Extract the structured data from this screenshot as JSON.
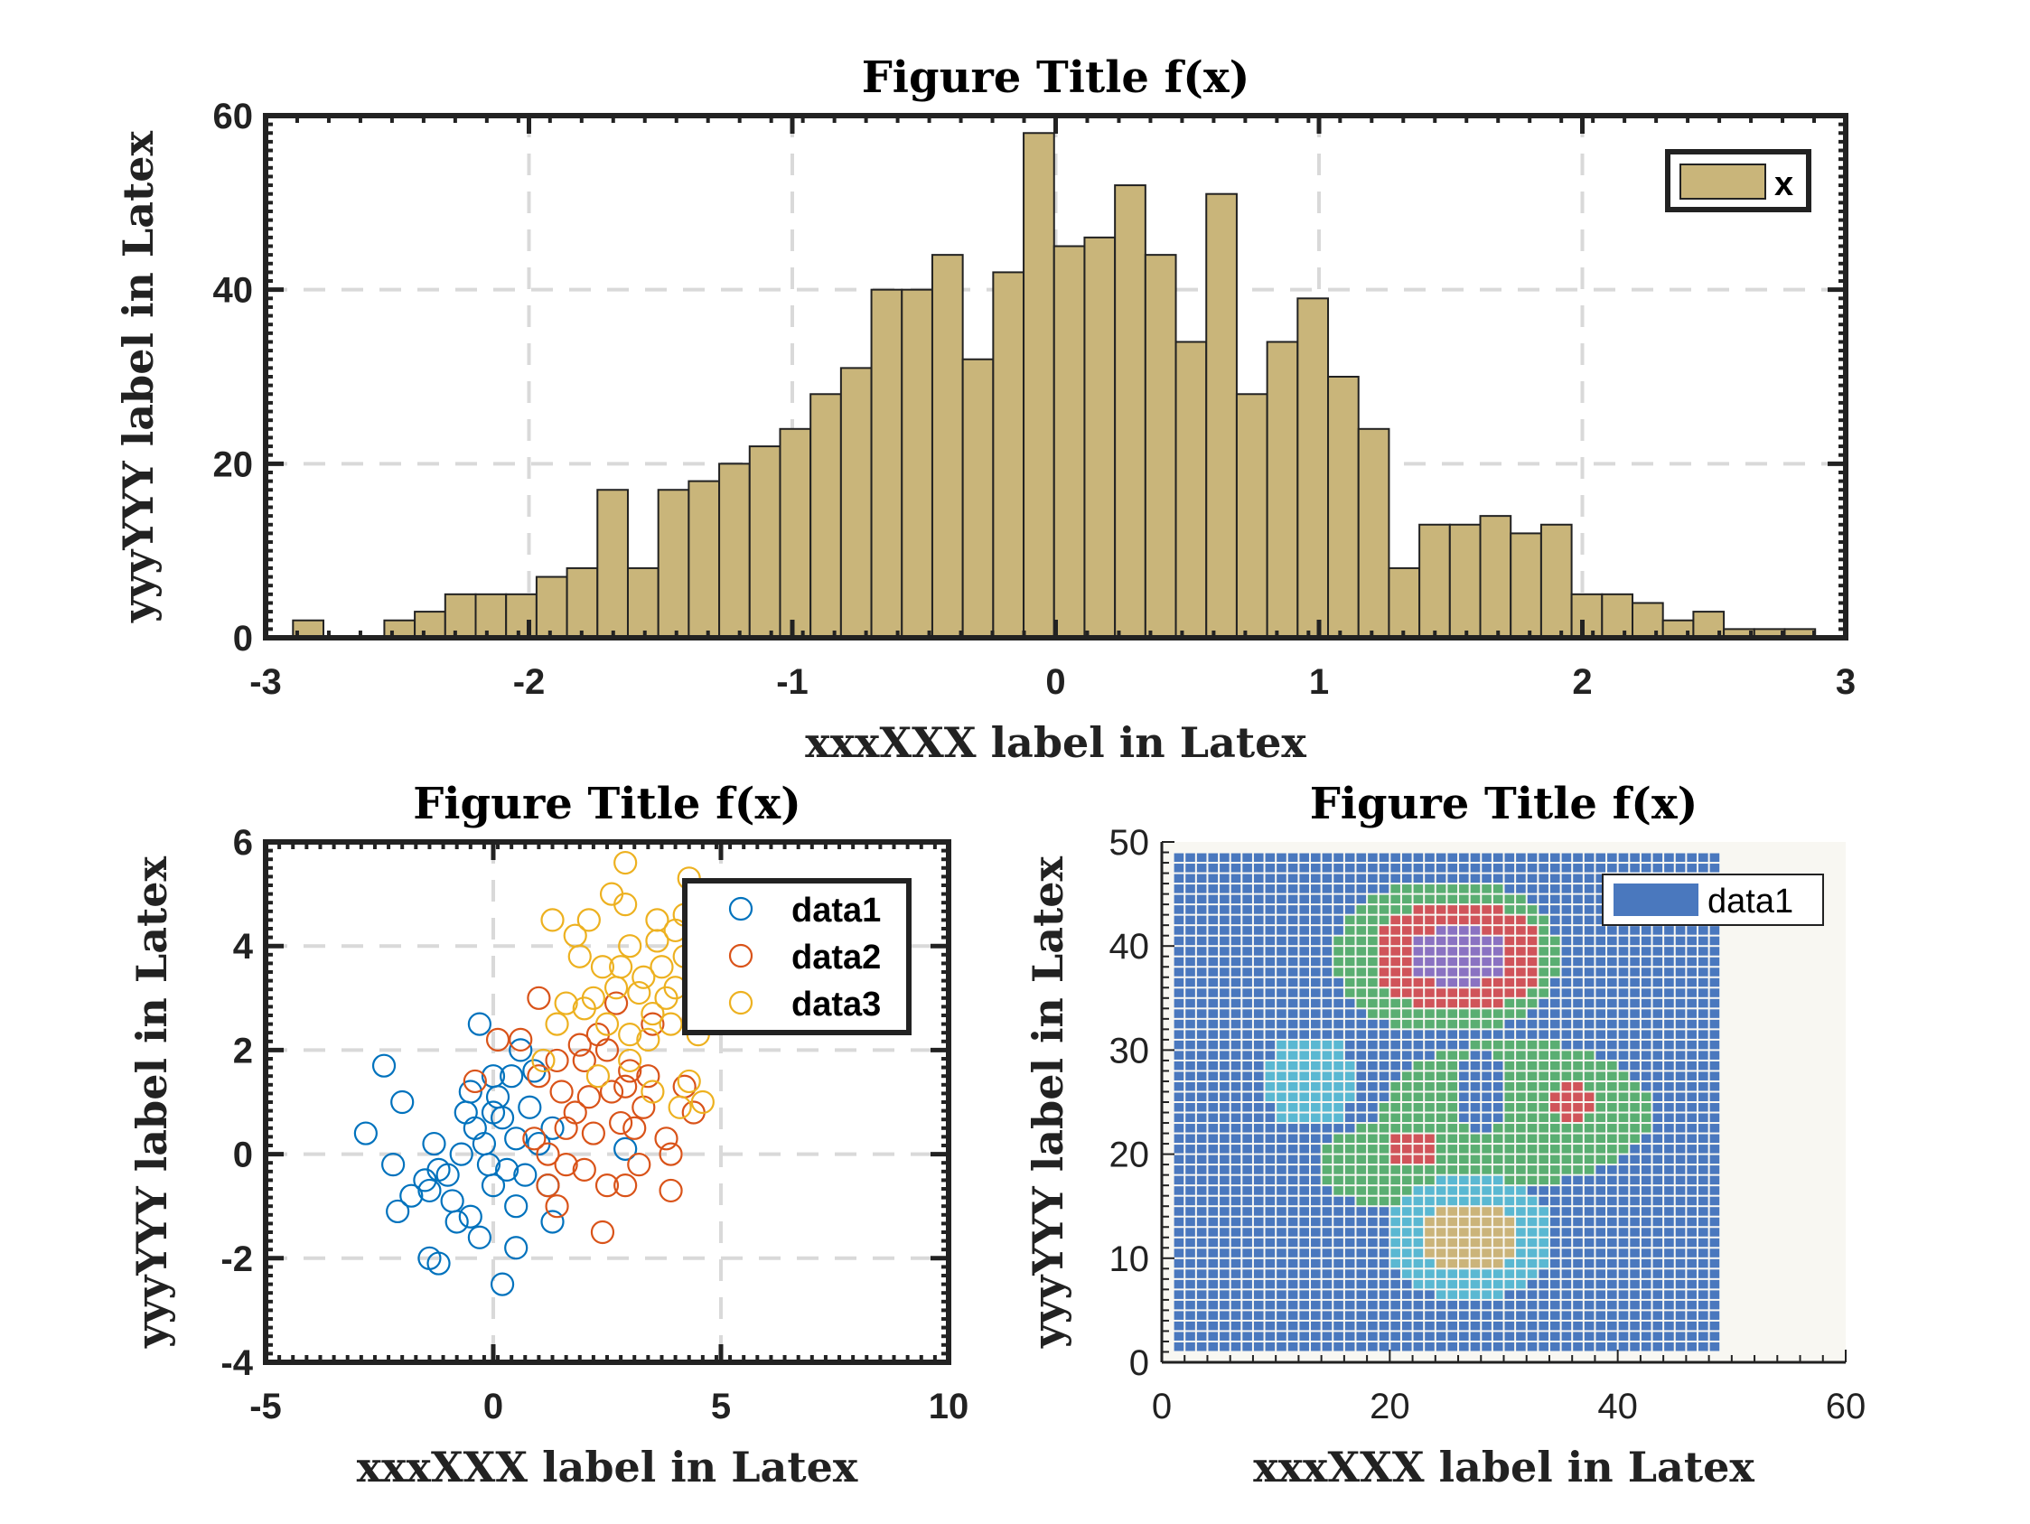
{
  "chart_data": [
    {
      "type": "bar",
      "subtype": "histogram",
      "title": "Figure Title f(x)",
      "xlabel": "xxxXXX label in Latex",
      "ylabel": "yyyYYY label in Latex",
      "xlim": [
        -3,
        3
      ],
      "ylim": [
        0,
        60
      ],
      "xticks": [
        "-3",
        "-2",
        "-1",
        "0",
        "1",
        "2",
        "3"
      ],
      "yticks": [
        "0",
        "20",
        "40",
        "60"
      ],
      "grid": true,
      "legend": {
        "entries": [
          "x"
        ],
        "placement": "top-right"
      },
      "bin_start": -2.896,
      "bin_width": 0.1156,
      "values": [
        2,
        0,
        0,
        2,
        3,
        5,
        5,
        5,
        7,
        8,
        17,
        8,
        17,
        18,
        20,
        22,
        24,
        28,
        31,
        40,
        40,
        44,
        32,
        42,
        58,
        45,
        46,
        52,
        44,
        34,
        51,
        28,
        34,
        39,
        30,
        24,
        8,
        13,
        13,
        14,
        12,
        13,
        5,
        5,
        4,
        2,
        3,
        1,
        1,
        1
      ],
      "color": "#C9B57A"
    },
    {
      "type": "scatter",
      "title": "Figure Title f(x)",
      "xlabel": "xxxXXX label in Latex",
      "ylabel": "yyyYYY label in Latex",
      "xlim": [
        -5,
        10
      ],
      "ylim": [
        -4,
        6
      ],
      "xticks": [
        "-5",
        "0",
        "5",
        "10"
      ],
      "yticks": [
        "-4",
        "-2",
        "0",
        "2",
        "4",
        "6"
      ],
      "grid": true,
      "legend": {
        "placement": "top-right"
      },
      "series": [
        {
          "name": "data1",
          "color": "#0072BD",
          "points": [
            [
              -2.8,
              0.4
            ],
            [
              -2.4,
              1.7
            ],
            [
              -2,
              1
            ],
            [
              -2.2,
              -0.2
            ],
            [
              -2.1,
              -1.1
            ],
            [
              -1.4,
              -2
            ],
            [
              -1.2,
              -2.1
            ],
            [
              0.2,
              -2.5
            ],
            [
              -0.3,
              2.5
            ],
            [
              -0.3,
              -1.6
            ],
            [
              0.5,
              -1.8
            ],
            [
              1.3,
              -1.3
            ],
            [
              1.2,
              -0.6
            ],
            [
              2.9,
              0.1
            ],
            [
              -1.8,
              -0.8
            ],
            [
              -1.5,
              -0.5
            ],
            [
              -1,
              -0.4
            ],
            [
              -0.5,
              -1.2
            ],
            [
              -0.8,
              -1.3
            ],
            [
              0,
              -0.6
            ],
            [
              0.3,
              -0.3
            ],
            [
              -0.7,
              0
            ],
            [
              -0.4,
              0.5
            ],
            [
              0,
              0.8
            ],
            [
              0.5,
              0.3
            ],
            [
              0.8,
              0.9
            ],
            [
              -0.5,
              1.2
            ],
            [
              0,
              1.5
            ],
            [
              0.4,
              1.5
            ],
            [
              0.9,
              1.6
            ],
            [
              0.6,
              2
            ],
            [
              -0.2,
              0.2
            ],
            [
              0.2,
              0.7
            ],
            [
              1,
              0.2
            ],
            [
              -1.2,
              -0.3
            ],
            [
              -1.4,
              -0.7
            ],
            [
              -0.9,
              -0.9
            ],
            [
              0.1,
              1.1
            ],
            [
              -0.1,
              -0.2
            ],
            [
              0.7,
              -0.4
            ],
            [
              1.3,
              0.5
            ],
            [
              0.5,
              -1
            ],
            [
              -0.6,
              0.8
            ],
            [
              -1.3,
              0.2
            ]
          ]
        },
        {
          "name": "data2",
          "color": "#D95319",
          "points": [
            [
              1,
              3
            ],
            [
              0.1,
              2.2
            ],
            [
              0.6,
              2.2
            ],
            [
              1.4,
              1.8
            ],
            [
              1,
              1.5
            ],
            [
              1.5,
              1.2
            ],
            [
              2,
              1.8
            ],
            [
              2.5,
              2
            ],
            [
              3,
              1.6
            ],
            [
              1.8,
              0.8
            ],
            [
              2.2,
              0.4
            ],
            [
              2.8,
              0.6
            ],
            [
              3.3,
              0.9
            ],
            [
              2,
              -0.3
            ],
            [
              2.5,
              -0.6
            ],
            [
              3.2,
              -0.2
            ],
            [
              3.9,
              -0.7
            ],
            [
              2.4,
              -1.5
            ],
            [
              4.2,
              1.3
            ],
            [
              3.8,
              0.3
            ],
            [
              3.9,
              0
            ],
            [
              4.4,
              0.8
            ],
            [
              2.6,
              1.2
            ],
            [
              1.2,
              0
            ],
            [
              1.6,
              -0.2
            ],
            [
              1.4,
              -1
            ],
            [
              1.6,
              0.5
            ],
            [
              2.1,
              1.1
            ],
            [
              2.9,
              1.3
            ],
            [
              3.4,
              1.5
            ],
            [
              2.3,
              2.3
            ],
            [
              2.7,
              2.9
            ],
            [
              1.9,
              2.1
            ],
            [
              3.1,
              0.5
            ],
            [
              -0.4,
              1.4
            ],
            [
              0.9,
              0.3
            ],
            [
              1.2,
              -0.6
            ],
            [
              2.9,
              -0.6
            ],
            [
              3.5,
              2.5
            ],
            [
              4.4,
              2.6
            ]
          ]
        },
        {
          "name": "data3",
          "color": "#EDB120",
          "points": [
            [
              2.9,
              5.6
            ],
            [
              4.3,
              5.3
            ],
            [
              1.3,
              4.5
            ],
            [
              1.8,
              4.2
            ],
            [
              1.9,
              3.8
            ],
            [
              2.6,
              5
            ],
            [
              2.9,
              4.8
            ],
            [
              3.6,
              4.5
            ],
            [
              4.2,
              4.6
            ],
            [
              3,
              4
            ],
            [
              2.4,
              3.6
            ],
            [
              2.7,
              3.2
            ],
            [
              3.3,
              3.4
            ],
            [
              3.7,
              3.6
            ],
            [
              4,
              3.2
            ],
            [
              4.2,
              3.8
            ],
            [
              2,
              2.8
            ],
            [
              2.5,
              2.5
            ],
            [
              3,
              2.3
            ],
            [
              3.5,
              2.7
            ],
            [
              3.9,
              2.5
            ],
            [
              4.5,
              2.3
            ],
            [
              1.6,
              2.9
            ],
            [
              3.2,
              3.1
            ],
            [
              3.8,
              3
            ],
            [
              3.4,
              2.2
            ],
            [
              1.1,
              1.8
            ],
            [
              2.3,
              1.5
            ],
            [
              4.3,
              1.4
            ],
            [
              4.6,
              1
            ],
            [
              4.1,
              0.9
            ],
            [
              3,
              1.8
            ],
            [
              2.8,
              3.6
            ],
            [
              3.6,
              4.1
            ],
            [
              4.5,
              3.9
            ],
            [
              2.1,
              4.5
            ],
            [
              3.5,
              1.2
            ],
            [
              2.2,
              3
            ],
            [
              1.4,
              2.5
            ],
            [
              4,
              4.3
            ]
          ]
        }
      ]
    },
    {
      "type": "heatmap",
      "title": "Figure Title f(x)",
      "xlabel": "xxxXXX label in Latex",
      "ylabel": "yyyYYY label in Latex",
      "xlim": [
        0,
        60
      ],
      "ylim": [
        0,
        50
      ],
      "xticks": [
        "0",
        "20",
        "40",
        "60"
      ],
      "yticks": [
        "0",
        "10",
        "20",
        "30",
        "40",
        "50"
      ],
      "grid_size": [
        48,
        48
      ],
      "legend": {
        "entries": [
          "data1"
        ],
        "placement": "top-right"
      },
      "level_colors": [
        "#4A78BE",
        "#5AB8D2",
        "#5AAE72",
        "#D0545A",
        "#8A72C2",
        "#CBB47A"
      ],
      "regions": [
        {
          "level": 2,
          "center": [
            25,
            39
          ],
          "radii": [
            10,
            7.5
          ]
        },
        {
          "level": 2,
          "center": [
            31,
            24
          ],
          "radii": [
            12,
            7
          ]
        },
        {
          "level": 2,
          "center": [
            19,
            19
          ],
          "radii": [
            5,
            4
          ]
        },
        {
          "level": 0,
          "center": [
            18,
            27
          ],
          "radii": [
            2.5,
            3
          ]
        },
        {
          "level": 0,
          "center": [
            28,
            26
          ],
          "radii": [
            2.5,
            4
          ]
        },
        {
          "level": 1,
          "center": [
            13,
            27
          ],
          "radii": [
            4,
            4.5
          ]
        },
        {
          "level": 3,
          "center": [
            26,
            39
          ],
          "radii": [
            7.5,
            5.5
          ]
        },
        {
          "level": 4,
          "center": [
            26,
            39
          ],
          "radii": [
            4,
            3.2
          ]
        },
        {
          "level": 3,
          "center": [
            36,
            25
          ],
          "radii": [
            2,
            2.2
          ]
        },
        {
          "level": 3,
          "center": [
            22,
            20.5
          ],
          "radii": [
            2,
            1.8
          ]
        },
        {
          "level": 1,
          "center": [
            27,
            12
          ],
          "radii": [
            7.5,
            6
          ]
        },
        {
          "level": 5,
          "center": [
            27,
            12
          ],
          "radii": [
            4,
            3.5
          ]
        }
      ]
    }
  ]
}
